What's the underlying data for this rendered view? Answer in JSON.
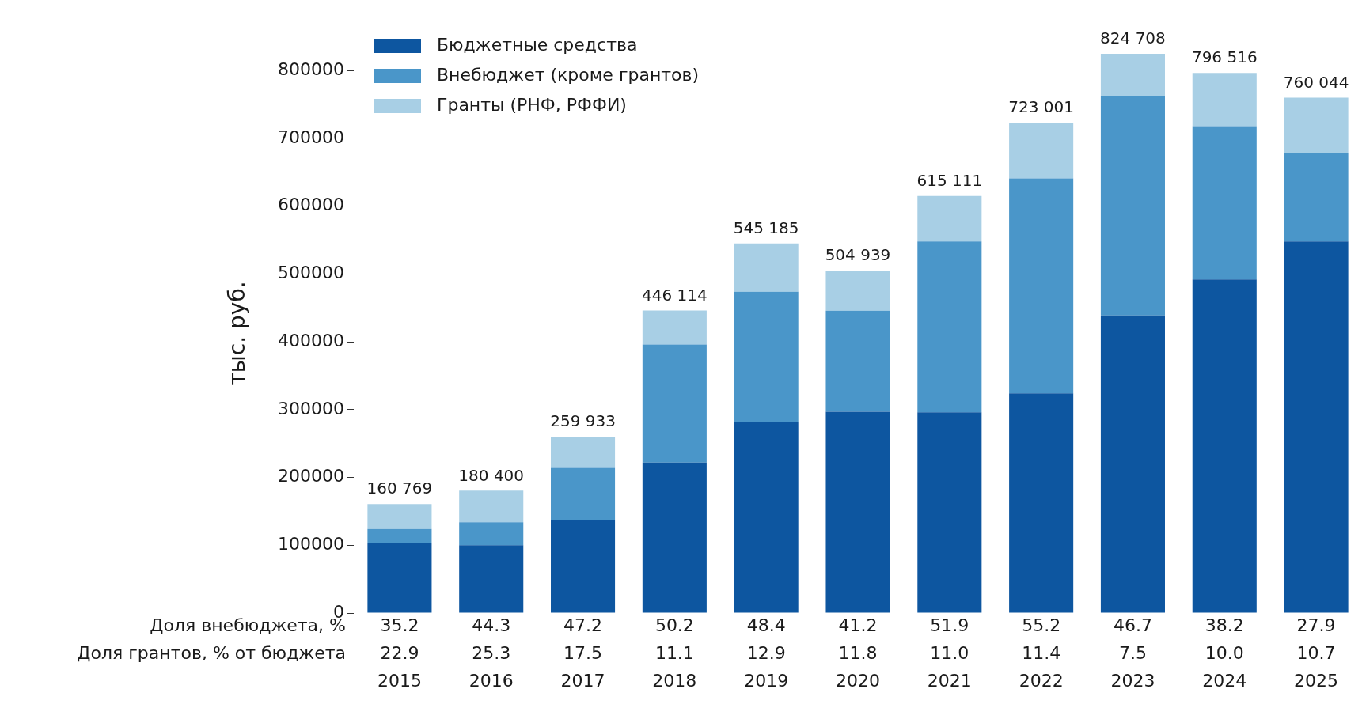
{
  "chart_data": {
    "type": "bar",
    "stacked": true,
    "ylabel": "тыс. руб.",
    "categories": [
      "35.2\n22.9\n2015",
      "44.3\n25.3\n2016",
      "47.2\n17.5\n2017",
      "50.2\n11.1\n2018",
      "48.4\n12.9\n2019",
      "41.2\n11.8\n2020",
      "51.9\n11.0\n2021",
      "55.2\n11.4\n2022",
      "46.7\n7.5\n2023",
      "38.2\n10.0\n2024",
      "27.9\n10.7\n2025"
    ],
    "series": [
      {
        "name": "Бюджетные средства",
        "color": "#0d56a0",
        "values": [
          103000,
          100000,
          137000,
          222000,
          281000,
          297000,
          296000,
          324000,
          439000,
          492000,
          548000
        ]
      },
      {
        "name": "Внебюджет (кроме грантов)",
        "color": "#4a96c9",
        "values": [
          21000,
          34000,
          77000,
          174000,
          193000,
          149000,
          252000,
          317000,
          324000,
          226000,
          131000
        ]
      },
      {
        "name": "Гранты (РНФ, РФФИ)",
        "color": "#a8cfe5",
        "values": [
          36769,
          46400,
          45933,
          50114,
          71185,
          58939,
          67111,
          82001,
          61708,
          78516,
          81044
        ]
      }
    ],
    "totals": [
      "160 769",
      "180 400",
      "259 933",
      "446 114",
      "545 185",
      "504 939",
      "615 111",
      "723 001",
      "824 708",
      "796 516",
      "760 044"
    ],
    "annotations": [
      "Доля внебюджета, %",
      "Доля грантов, % от бюджета"
    ],
    "ylim": [
      0,
      824708
    ],
    "yticks": [
      0,
      100000,
      200000,
      300000,
      400000,
      500000,
      600000,
      700000,
      800000
    ],
    "grid": false,
    "legend": "top left"
  }
}
